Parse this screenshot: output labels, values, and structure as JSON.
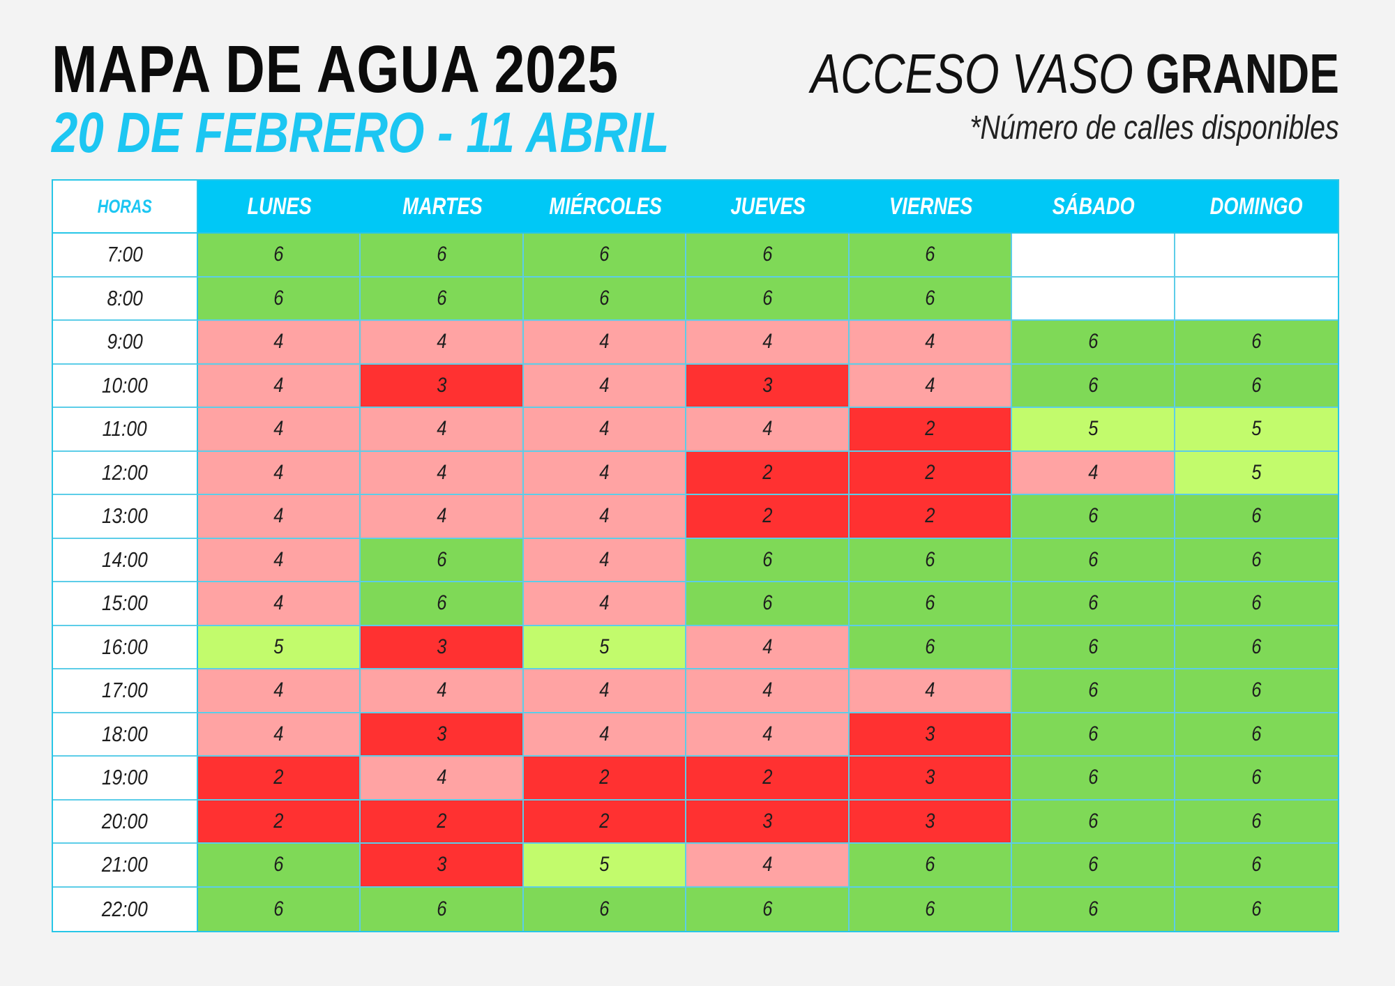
{
  "title": "MAPA DE AGUA 2025",
  "subtitle": "20 DE FEBRERO - 11 ABRIL",
  "access": {
    "light": "ACCESO VASO",
    "bold": "GRANDE"
  },
  "note": "*Número de calles disponibles",
  "colors": {
    "accent": "#00c8f6",
    "v6": "#7fd957",
    "v5": "#c2fb6c",
    "v4": "#ffa3a3",
    "v3": "#ff3131",
    "v2": "#ff3131"
  },
  "table": {
    "hours_header": "HORAS",
    "days": [
      "LUNES",
      "MARTES",
      "MIÉRCOLES",
      "JUEVES",
      "VIERNES",
      "SÁBADO",
      "DOMINGO"
    ],
    "rows": [
      {
        "time": "7:00",
        "values": [
          "6",
          "6",
          "6",
          "6",
          "6",
          "",
          ""
        ]
      },
      {
        "time": "8:00",
        "values": [
          "6",
          "6",
          "6",
          "6",
          "6",
          "",
          ""
        ]
      },
      {
        "time": "9:00",
        "values": [
          "4",
          "4",
          "4",
          "4",
          "4",
          "6",
          "6"
        ]
      },
      {
        "time": "10:00",
        "values": [
          "4",
          "3",
          "4",
          "3",
          "4",
          "6",
          "6"
        ]
      },
      {
        "time": "11:00",
        "values": [
          "4",
          "4",
          "4",
          "4",
          "2",
          "5",
          "5"
        ]
      },
      {
        "time": "12:00",
        "values": [
          "4",
          "4",
          "4",
          "2",
          "2",
          "4",
          "5"
        ]
      },
      {
        "time": "13:00",
        "values": [
          "4",
          "4",
          "4",
          "2",
          "2",
          "6",
          "6"
        ]
      },
      {
        "time": "14:00",
        "values": [
          "4",
          "6",
          "4",
          "6",
          "6",
          "6",
          "6"
        ]
      },
      {
        "time": "15:00",
        "values": [
          "4",
          "6",
          "4",
          "6",
          "6",
          "6",
          "6"
        ]
      },
      {
        "time": "16:00",
        "values": [
          "5",
          "3",
          "5",
          "4",
          "6",
          "6",
          "6"
        ]
      },
      {
        "time": "17:00",
        "values": [
          "4",
          "4",
          "4",
          "4",
          "4",
          "6",
          "6"
        ]
      },
      {
        "time": "18:00",
        "values": [
          "4",
          "3",
          "4",
          "4",
          "3",
          "6",
          "6"
        ]
      },
      {
        "time": "19:00",
        "values": [
          "2",
          "4",
          "2",
          "2",
          "3",
          "6",
          "6"
        ]
      },
      {
        "time": "20:00",
        "values": [
          "2",
          "2",
          "2",
          "3",
          "3",
          "6",
          "6"
        ]
      },
      {
        "time": "21:00",
        "values": [
          "6",
          "3",
          "5",
          "4",
          "6",
          "6",
          "6"
        ]
      },
      {
        "time": "22:00",
        "values": [
          "6",
          "6",
          "6",
          "6",
          "6",
          "6",
          "6"
        ]
      }
    ]
  }
}
